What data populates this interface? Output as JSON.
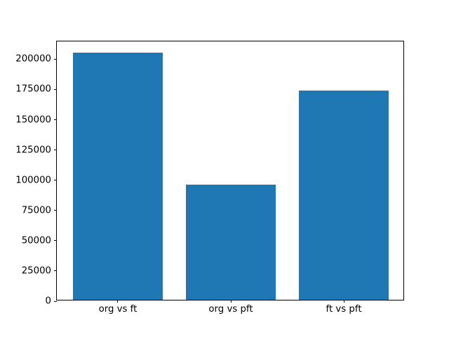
{
  "figure": {
    "background": "#ffffff"
  },
  "chart_data": {
    "type": "bar",
    "title": "",
    "categories": [
      "org vs ft",
      "org vs pft",
      "ft vs pft"
    ],
    "values": [
      204500,
      95000,
      173000
    ],
    "xlabel": "",
    "ylabel": "",
    "ylim": [
      0,
      214725
    ],
    "xlim": [
      -0.54,
      2.54
    ],
    "bar_width": 0.8,
    "yticks": [
      0,
      25000,
      50000,
      75000,
      100000,
      125000,
      150000,
      175000,
      200000
    ],
    "ytick_labels": [
      "0",
      "25000",
      "50000",
      "75000",
      "100000",
      "125000",
      "150000",
      "175000",
      "200000"
    ],
    "bar_color": "#1f77b4",
    "axis_color": "#000000",
    "text_color": "#000000",
    "grid": false,
    "legend_position": "none"
  }
}
